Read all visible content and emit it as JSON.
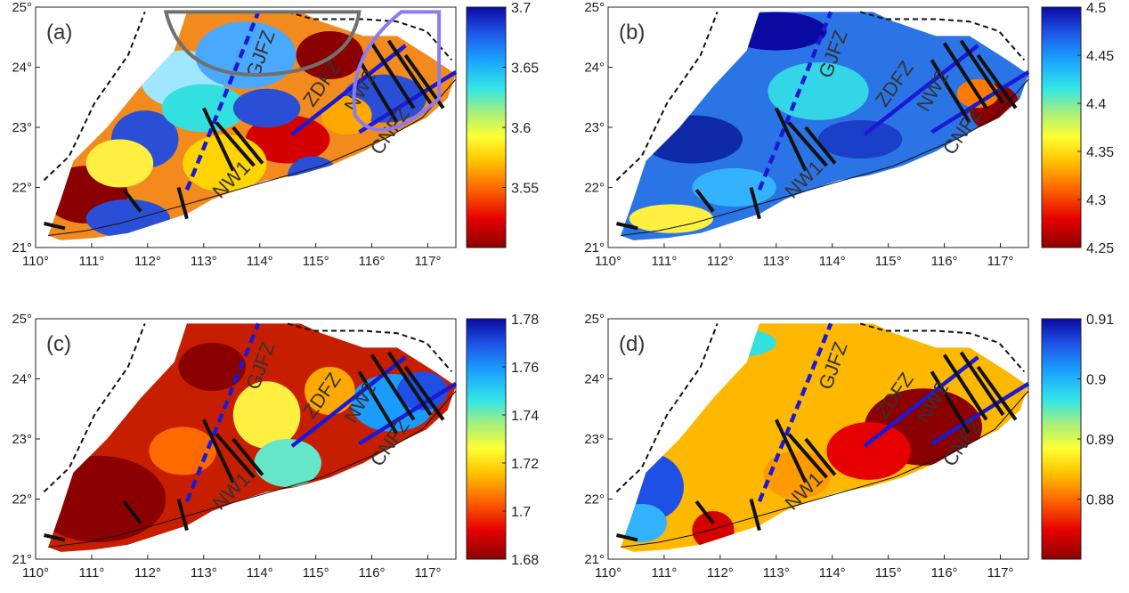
{
  "panels": [
    {
      "label": "(a)",
      "colorbar": {
        "ticks": [
          "3.7",
          "3.65",
          "3.6",
          "3.55"
        ],
        "min_label_pos": 0.0
      },
      "faults": [
        "GJFZ",
        "ZDFZ",
        "NW2",
        "CNFZ",
        "NW1"
      ],
      "field": "mottled",
      "overlays": [
        "gray-arc",
        "purple-arc"
      ]
    },
    {
      "label": "(b)",
      "colorbar": {
        "ticks": [
          "4.5",
          "4.45",
          "4.4",
          "4.35",
          "4.3",
          "4.25"
        ]
      },
      "faults": [
        "GJFZ",
        "ZDFZ",
        "NW2",
        "CNFZ",
        "NW1"
      ],
      "field": "blue"
    },
    {
      "label": "(c)",
      "colorbar": {
        "ticks": [
          "1.78",
          "1.76",
          "1.74",
          "1.72",
          "1.7",
          "1.68"
        ]
      },
      "faults": [
        "GJFZ",
        "ZDFZ",
        "NW2",
        "CNFZ",
        "NW1"
      ],
      "field": "red-west"
    },
    {
      "label": "(d)",
      "colorbar": {
        "ticks": [
          "0.91",
          "0.9",
          "0.89",
          "0.88"
        ]
      },
      "faults": [
        "GJFZ",
        "ZDFZ",
        "NW2",
        "CNFZ",
        "NW1"
      ],
      "field": "orange"
    }
  ],
  "axes": {
    "x_ticks": [
      "110°",
      "111°",
      "112°",
      "113°",
      "114°",
      "115°",
      "116°",
      "117°"
    ],
    "y_ticks": [
      "25°",
      "24°",
      "23°",
      "22°",
      "21°"
    ]
  }
}
